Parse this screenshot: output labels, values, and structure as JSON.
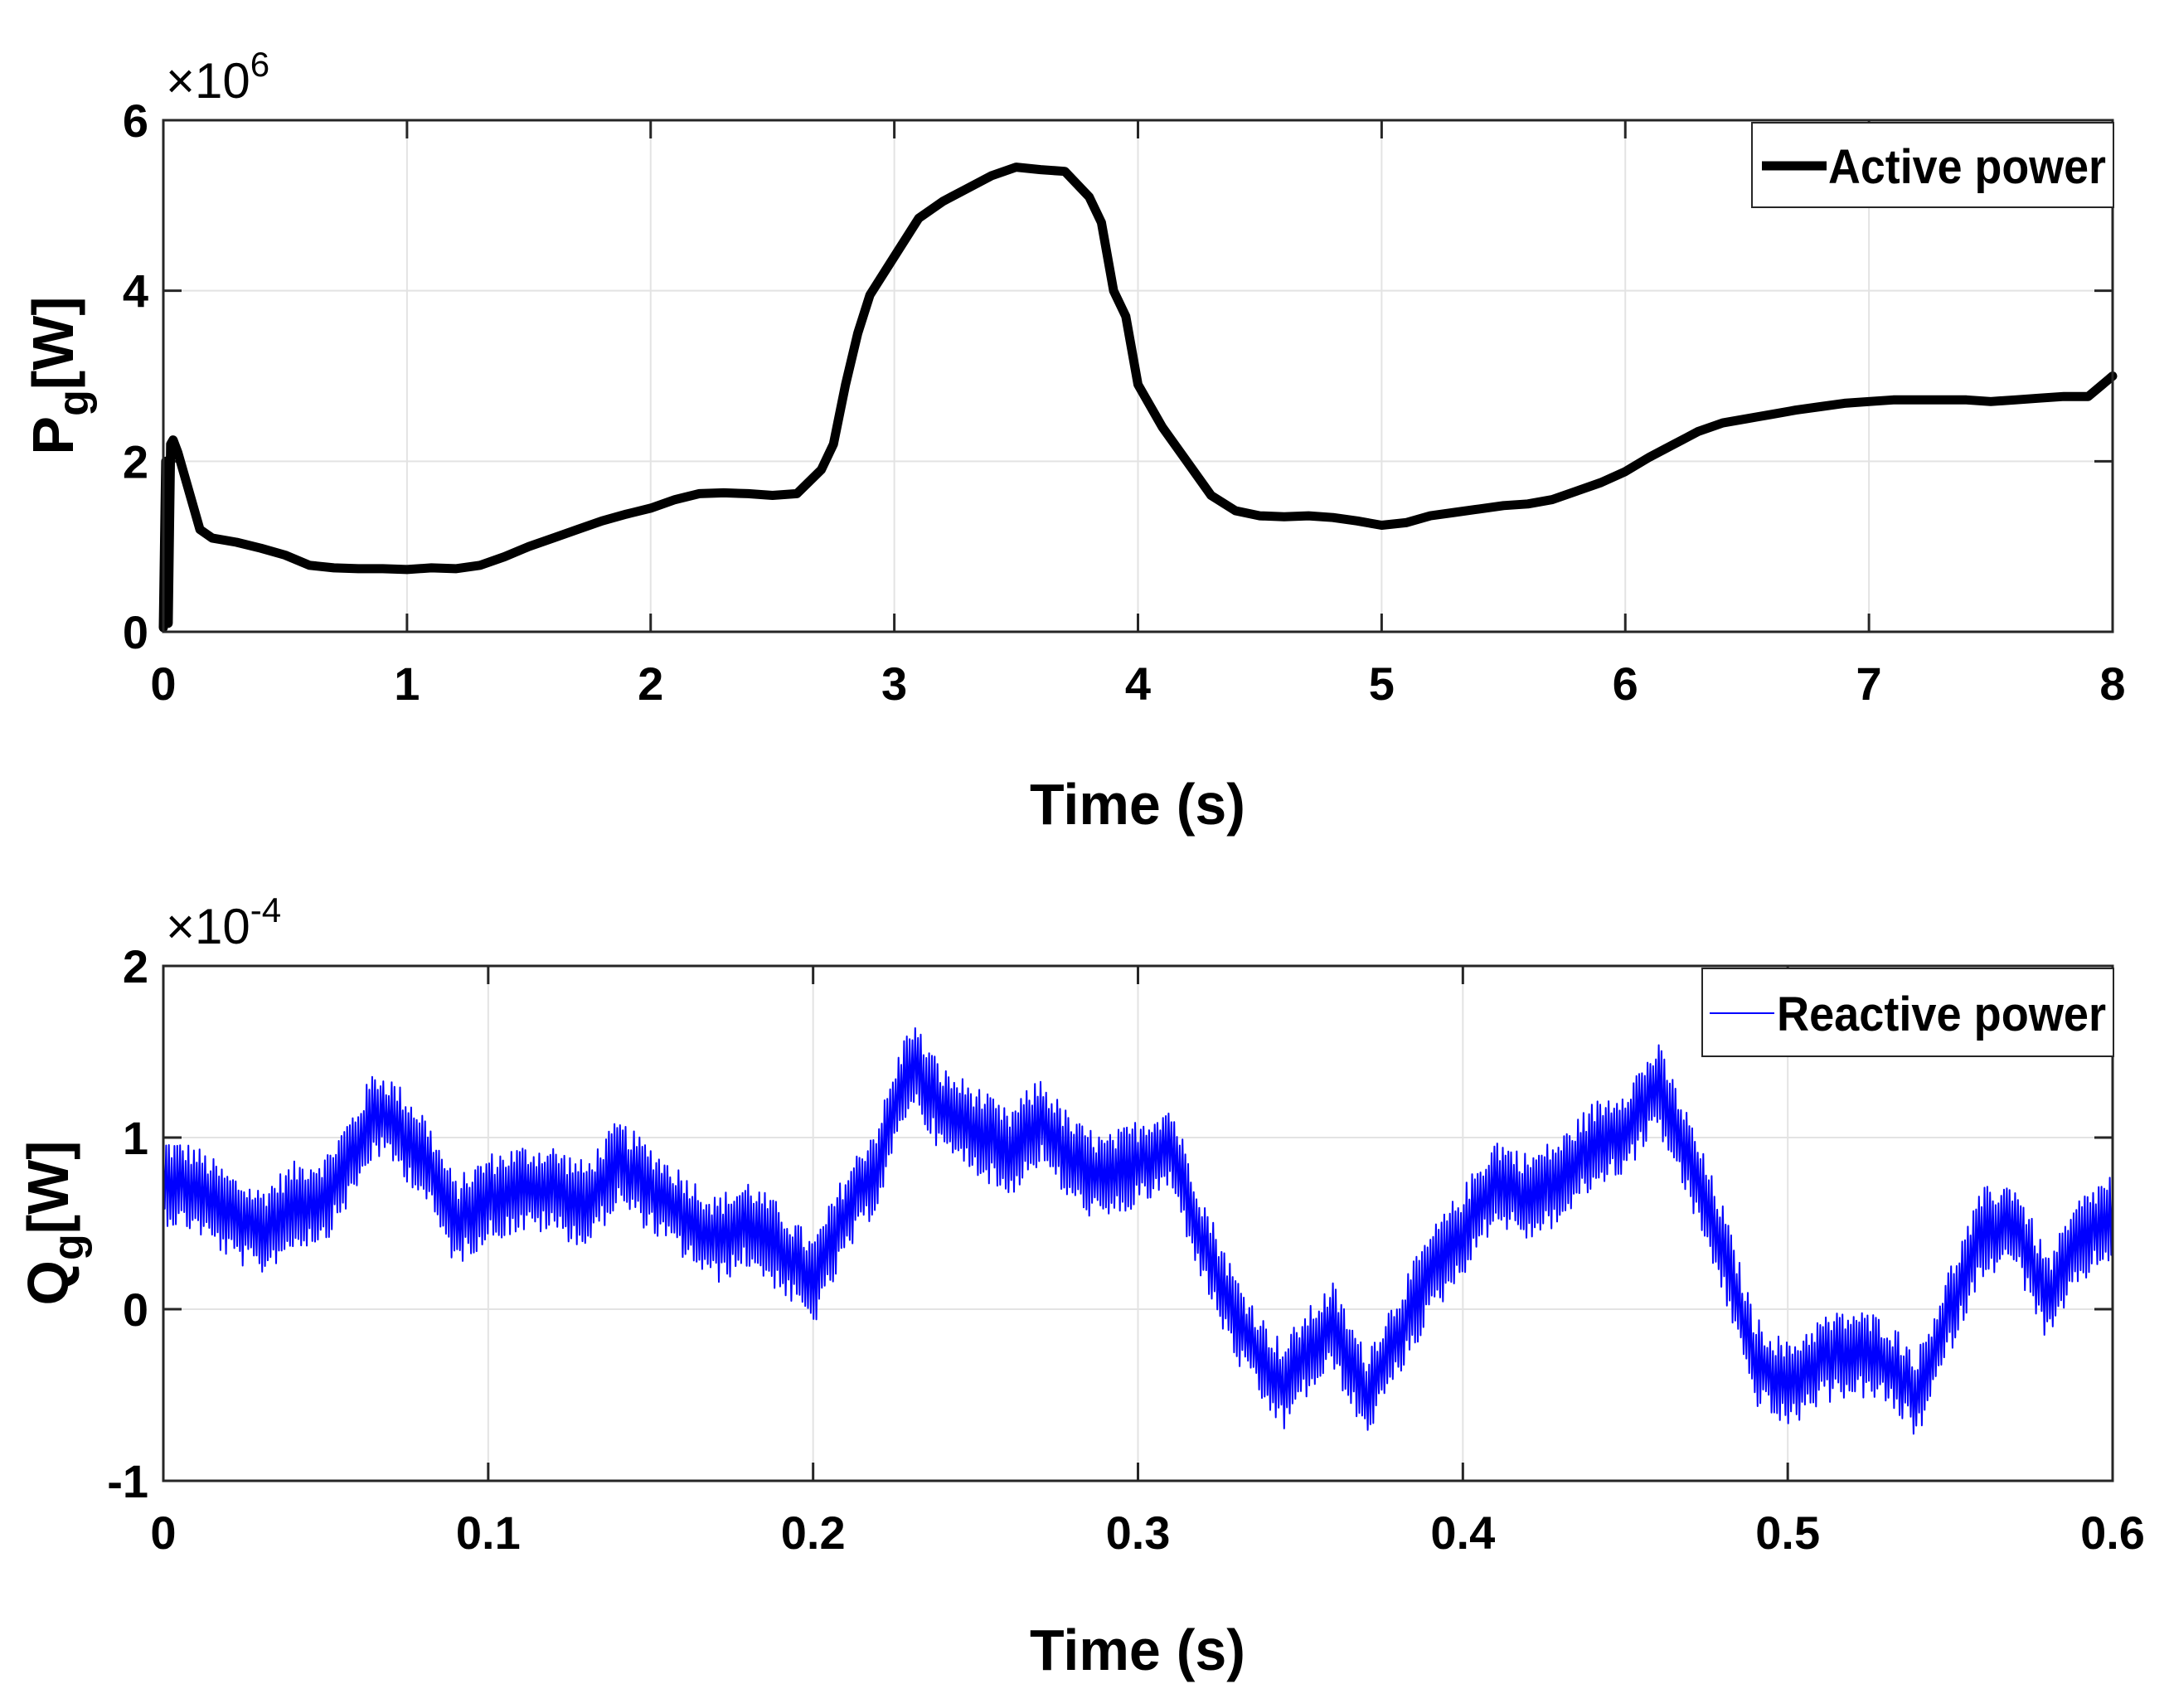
{
  "chart_data": [
    {
      "type": "line",
      "title": "",
      "xlabel": "Time (s)",
      "ylabel": "P",
      "ylabel_sub": "g",
      "ylabel_units": "[W]",
      "xlim": [
        0,
        8
      ],
      "ylim": [
        0,
        6
      ],
      "xticks": [
        "0",
        "1",
        "2",
        "3",
        "4",
        "5",
        "6",
        "7",
        "8"
      ],
      "yticks": [
        "0",
        "2",
        "4",
        "6"
      ],
      "y_exponent": {
        "base": "×10",
        "power": "6"
      },
      "grid": true,
      "legend_position": "top-right",
      "series": [
        {
          "name": "Active power",
          "color": "#000000",
          "x": [
            0,
            0.01,
            0.02,
            0.03,
            0.04,
            0.06,
            0.1,
            0.15,
            0.2,
            0.3,
            0.4,
            0.5,
            0.6,
            0.7,
            0.8,
            0.9,
            1.0,
            1.1,
            1.2,
            1.3,
            1.4,
            1.5,
            1.6,
            1.7,
            1.8,
            1.9,
            2.0,
            2.1,
            2.2,
            2.3,
            2.4,
            2.5,
            2.6,
            2.7,
            2.75,
            2.8,
            2.85,
            2.9,
            3.0,
            3.1,
            3.2,
            3.3,
            3.4,
            3.5,
            3.6,
            3.7,
            3.8,
            3.85,
            3.9,
            3.95,
            4.0,
            4.1,
            4.2,
            4.3,
            4.4,
            4.5,
            4.6,
            4.7,
            4.8,
            4.9,
            5.0,
            5.1,
            5.2,
            5.3,
            5.4,
            5.5,
            5.6,
            5.7,
            5.8,
            5.9,
            6.0,
            6.1,
            6.2,
            6.3,
            6.4,
            6.5,
            6.6,
            6.7,
            6.8,
            6.9,
            7.0,
            7.1,
            7.2,
            7.3,
            7.4,
            7.5,
            7.6,
            7.7,
            7.8,
            7.9,
            8.0
          ],
          "values": [
            0.05,
            2.0,
            0.1,
            2.2,
            2.25,
            2.1,
            1.7,
            1.2,
            1.1,
            1.05,
            0.98,
            0.9,
            0.78,
            0.75,
            0.74,
            0.74,
            0.73,
            0.75,
            0.74,
            0.78,
            0.88,
            1.0,
            1.1,
            1.2,
            1.3,
            1.38,
            1.45,
            1.55,
            1.62,
            1.63,
            1.62,
            1.6,
            1.62,
            1.9,
            2.2,
            2.9,
            3.5,
            3.95,
            4.4,
            4.85,
            5.05,
            5.2,
            5.35,
            5.45,
            5.42,
            5.4,
            5.1,
            4.8,
            4.0,
            3.7,
            2.9,
            2.4,
            2.0,
            1.6,
            1.42,
            1.36,
            1.35,
            1.36,
            1.34,
            1.3,
            1.25,
            1.28,
            1.36,
            1.4,
            1.44,
            1.48,
            1.5,
            1.55,
            1.65,
            1.75,
            1.88,
            2.05,
            2.2,
            2.35,
            2.45,
            2.5,
            2.55,
            2.6,
            2.64,
            2.68,
            2.7,
            2.72,
            2.72,
            2.72,
            2.72,
            2.7,
            2.72,
            2.74,
            2.76,
            2.76,
            3.0
          ]
        }
      ]
    },
    {
      "type": "line",
      "title": "",
      "xlabel": "Time (s)",
      "ylabel": "Q",
      "ylabel_sub": "g",
      "ylabel_units": "[W]",
      "xlim": [
        0,
        0.6
      ],
      "ylim": [
        -1,
        2
      ],
      "xticks": [
        "0",
        "0.1",
        "0.2",
        "0.3",
        "0.4",
        "0.5",
        "0.6"
      ],
      "yticks": [
        "-1",
        "0",
        "1",
        "2"
      ],
      "y_exponent": {
        "base": "×10",
        "power": "-4"
      },
      "grid": true,
      "legend_position": "top-right",
      "series": [
        {
          "name": "Reactive power",
          "color": "#0000ff",
          "x": [
            0,
            0.01,
            0.02,
            0.03,
            0.04,
            0.05,
            0.06,
            0.065,
            0.07,
            0.08,
            0.09,
            0.1,
            0.11,
            0.12,
            0.13,
            0.14,
            0.15,
            0.16,
            0.17,
            0.18,
            0.19,
            0.2,
            0.21,
            0.22,
            0.23,
            0.24,
            0.25,
            0.26,
            0.27,
            0.28,
            0.29,
            0.3,
            0.31,
            0.32,
            0.33,
            0.34,
            0.345,
            0.35,
            0.36,
            0.37,
            0.38,
            0.39,
            0.4,
            0.41,
            0.42,
            0.43,
            0.44,
            0.45,
            0.46,
            0.47,
            0.48,
            0.49,
            0.5,
            0.51,
            0.52,
            0.53,
            0.54,
            0.55,
            0.56,
            0.57,
            0.58,
            0.59,
            0.6
          ],
          "values": [
            0.75,
            0.7,
            0.55,
            0.45,
            0.6,
            0.65,
            0.95,
            1.15,
            1.1,
            0.9,
            0.5,
            0.65,
            0.7,
            0.7,
            0.6,
            0.85,
            0.7,
            0.55,
            0.4,
            0.5,
            0.35,
            0.15,
            0.55,
            0.85,
            1.45,
            1.15,
            1.05,
            0.9,
            1.1,
            0.85,
            0.75,
            0.85,
            0.95,
            0.4,
            -0.05,
            -0.35,
            -0.45,
            -0.3,
            -0.1,
            -0.5,
            -0.15,
            0.2,
            0.45,
            0.75,
            0.65,
            0.75,
            0.95,
            1.05,
            1.3,
            0.85,
            0.35,
            -0.3,
            -0.45,
            -0.3,
            -0.25,
            -0.3,
            -0.5,
            0.0,
            0.45,
            0.5,
            0.05,
            0.4,
            0.55
          ]
        }
      ]
    }
  ]
}
